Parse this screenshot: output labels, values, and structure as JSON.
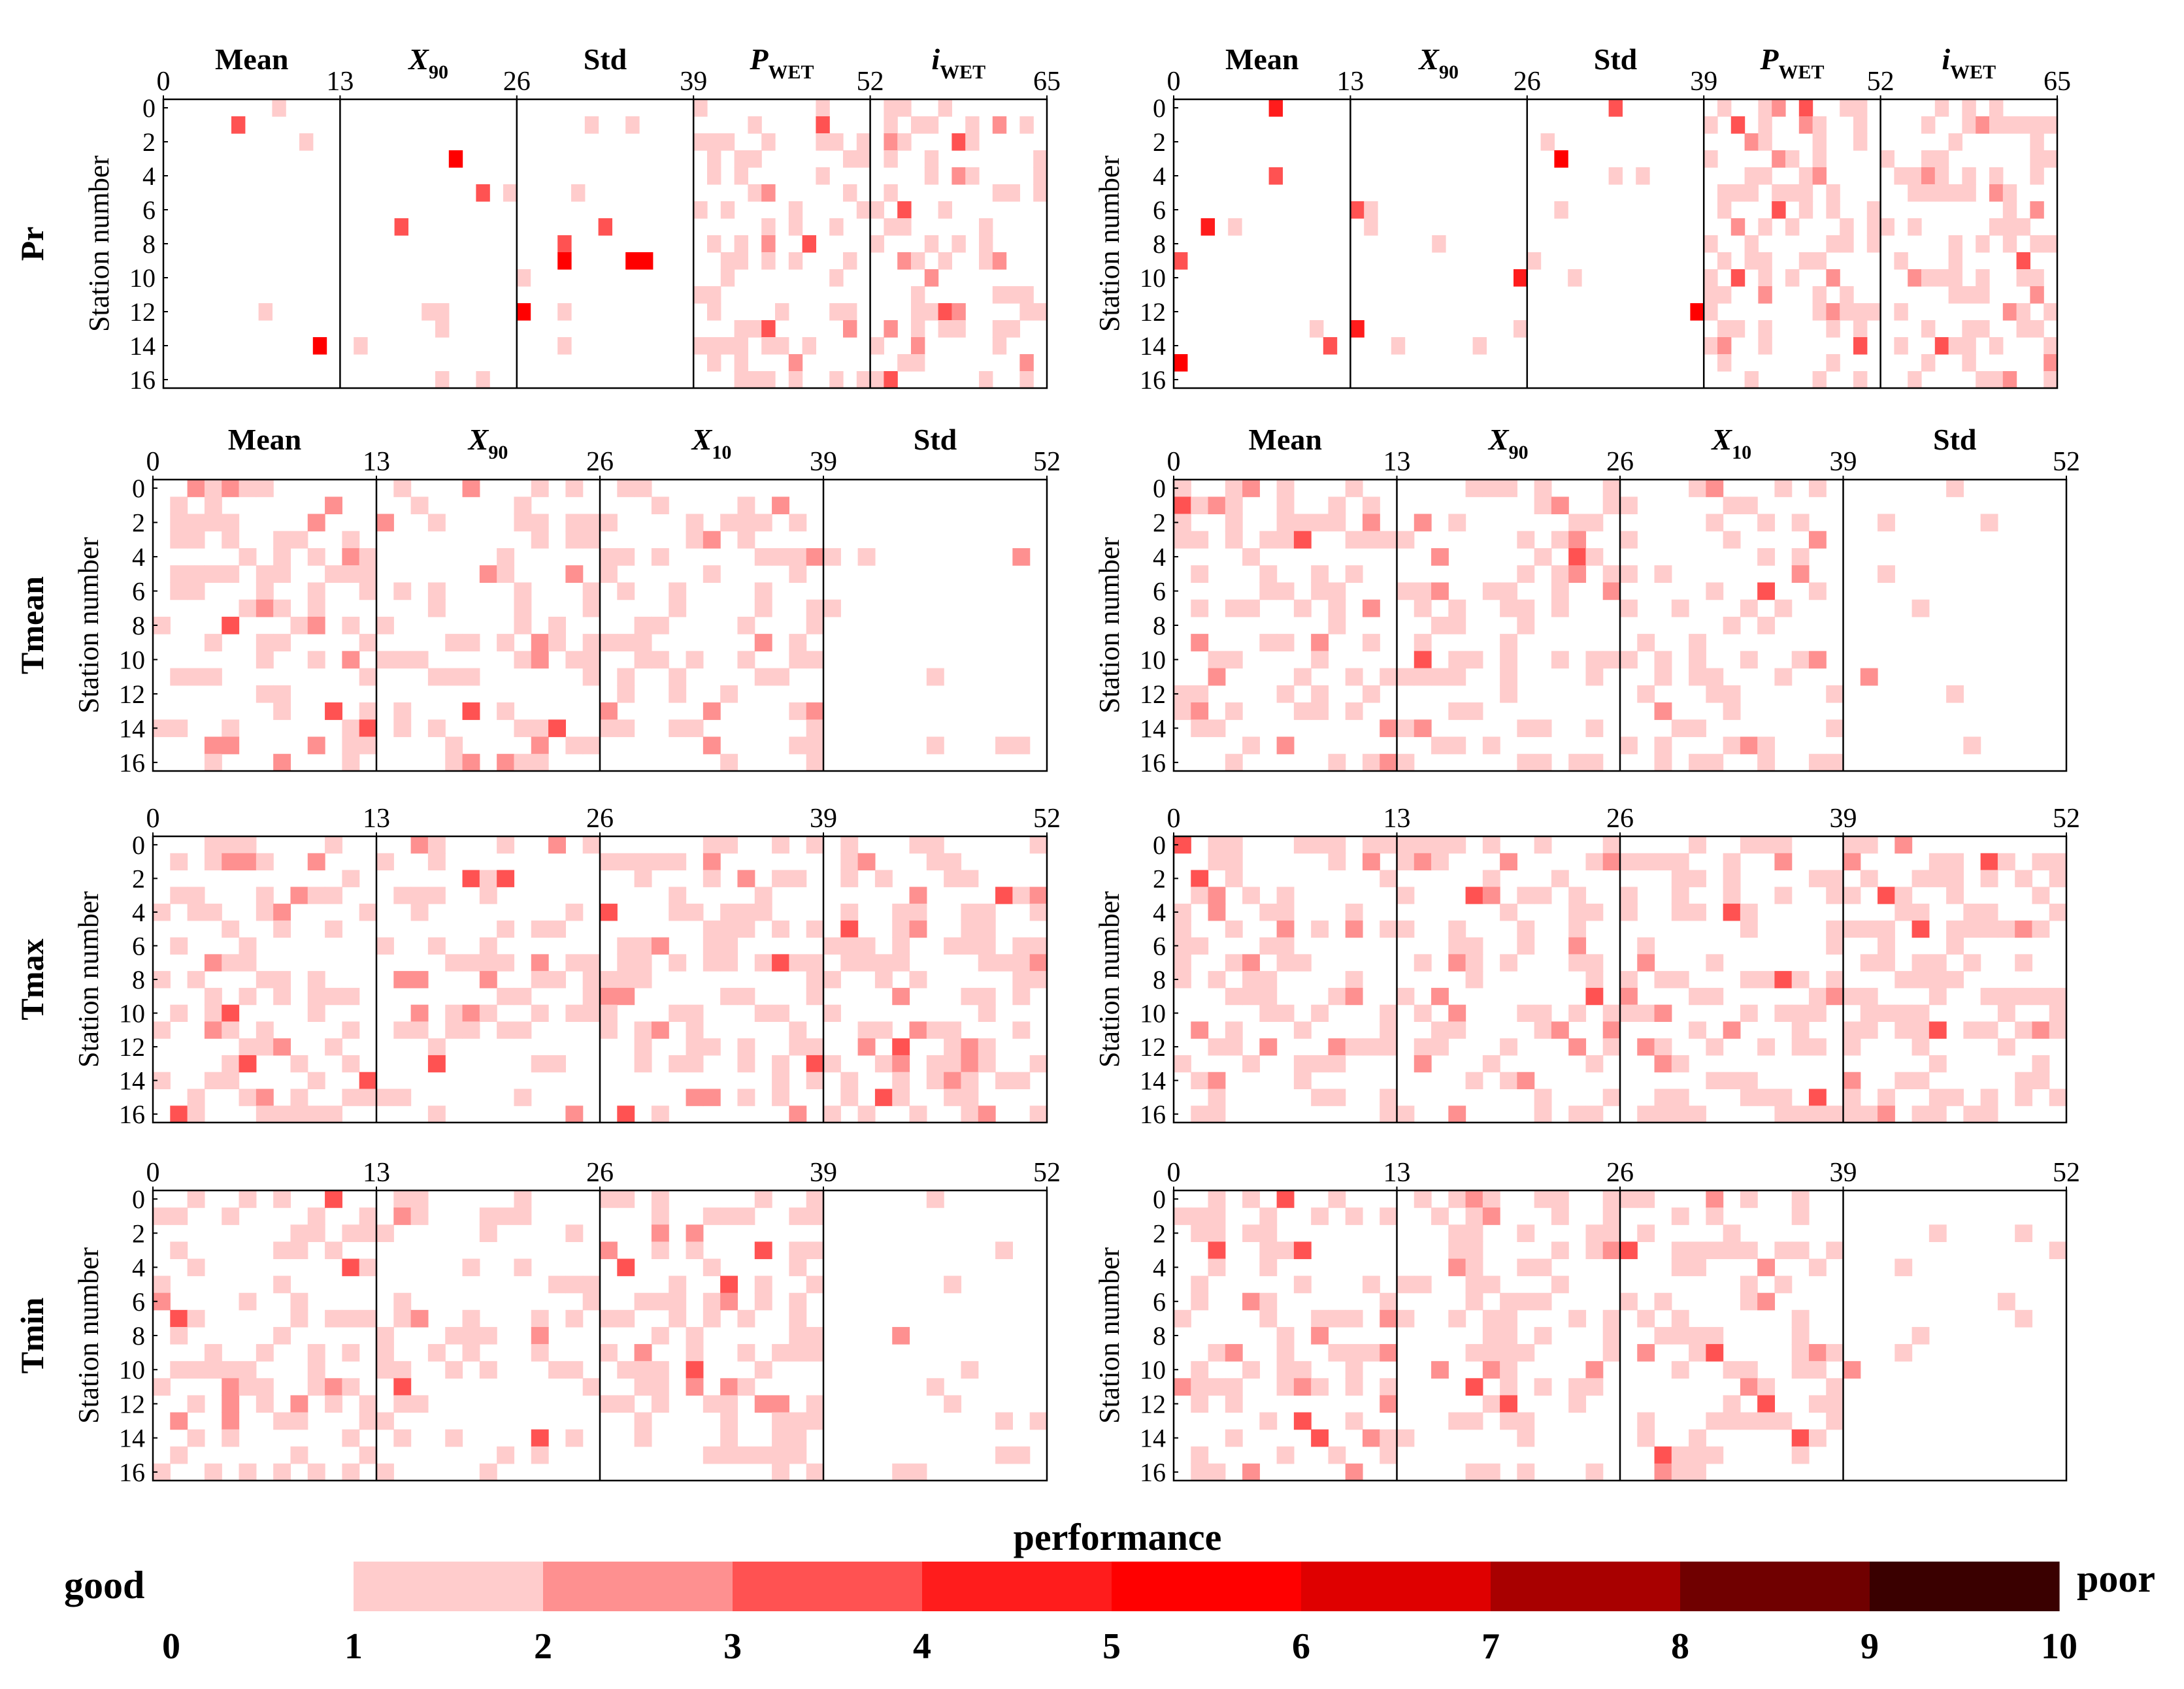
{
  "chart_data": {
    "type": "heatmap",
    "description_counts": {
      "stations": 17
    },
    "y_axis_label": "Station number",
    "y_ticks": [
      0,
      2,
      4,
      6,
      8,
      10,
      12,
      14,
      16
    ],
    "color_scale": {
      "title": "performance",
      "left_label": "good",
      "right_label": "poor",
      "ticks": [
        "0",
        "1",
        "2",
        "3",
        "4",
        "5",
        "6",
        "7",
        "8",
        "9",
        "10"
      ],
      "colors": [
        "#ffcccc",
        "#fe9090",
        "#ff5252",
        "#ff1c1c",
        "#ff0000",
        "#df0000",
        "#a80000",
        "#700000",
        "#3a0000"
      ]
    },
    "rows": [
      {
        "variable": "Pr",
        "columns": 65,
        "x_ticks": [
          "0",
          "13",
          "26",
          "39",
          "52",
          "65"
        ],
        "sections": [
          {
            "name": "Mean",
            "sub": ""
          },
          {
            "name": "X",
            "sub": "90"
          },
          {
            "name": "Std",
            "sub": ""
          },
          {
            "name": "P",
            "sub": "WET"
          },
          {
            "name": "i",
            "sub": "WET"
          }
        ],
        "panels": [
          {
            "panel": "left",
            "seed": 11,
            "density": [
              0.02,
              0.03,
              0.05,
              0.32,
              0.3
            ]
          },
          {
            "panel": "right",
            "seed": 29,
            "density": [
              0.06,
              0.05,
              0.07,
              0.38,
              0.34
            ]
          }
        ]
      },
      {
        "variable": "Tmean",
        "columns": 52,
        "x_ticks": [
          "0",
          "13",
          "26",
          "39",
          "52"
        ],
        "sections": [
          {
            "name": "Mean",
            "sub": ""
          },
          {
            "name": "X",
            "sub": "90"
          },
          {
            "name": "X",
            "sub": "10"
          },
          {
            "name": "Std",
            "sub": ""
          }
        ],
        "panels": [
          {
            "panel": "left",
            "seed": 41,
            "density": [
              0.3,
              0.3,
              0.3,
              0.04
            ]
          },
          {
            "panel": "right",
            "seed": 53,
            "density": [
              0.3,
              0.3,
              0.3,
              0.04
            ]
          }
        ]
      },
      {
        "variable": "Tmax",
        "columns": 52,
        "x_ticks": [
          "0",
          "13",
          "26",
          "39",
          "52"
        ],
        "sections": [
          {
            "name": "",
            "sub": ""
          },
          {
            "name": "",
            "sub": ""
          },
          {
            "name": "",
            "sub": ""
          },
          {
            "name": "",
            "sub": ""
          }
        ],
        "panels": [
          {
            "panel": "left",
            "seed": 67,
            "density": [
              0.33,
              0.3,
              0.34,
              0.45
            ]
          },
          {
            "panel": "right",
            "seed": 79,
            "density": [
              0.33,
              0.3,
              0.34,
              0.45
            ]
          }
        ]
      },
      {
        "variable": "Tmin",
        "columns": 52,
        "x_ticks": [
          "0",
          "13",
          "26",
          "39",
          "52"
        ],
        "sections": [
          {
            "name": "",
            "sub": ""
          },
          {
            "name": "",
            "sub": ""
          },
          {
            "name": "",
            "sub": ""
          },
          {
            "name": "",
            "sub": ""
          }
        ],
        "panels": [
          {
            "panel": "left",
            "seed": 83,
            "density": [
              0.32,
              0.32,
              0.32,
              0.04
            ]
          },
          {
            "panel": "right",
            "seed": 97,
            "density": [
              0.32,
              0.32,
              0.32,
              0.04
            ]
          }
        ]
      }
    ]
  }
}
